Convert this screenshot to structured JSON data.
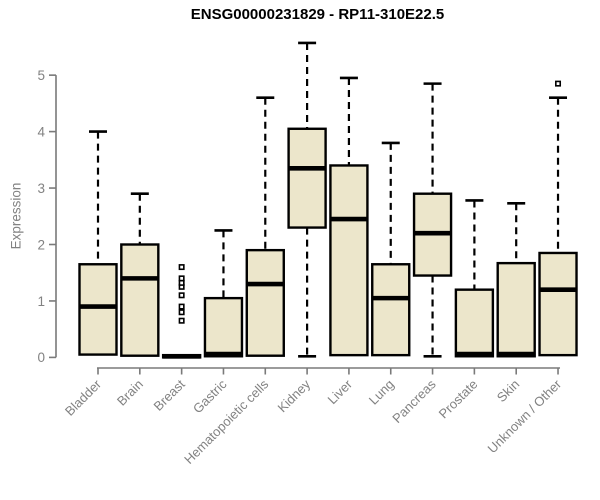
{
  "chart_data": {
    "type": "boxplot",
    "title": "ENSG00000231829 - RP11-310E22.5",
    "ylabel": "Expression",
    "ylim": [
      0,
      5.77
    ],
    "yticks": [
      "0",
      "1",
      "2",
      "3",
      "4",
      "5"
    ],
    "grid": false,
    "legend": false,
    "colors": {
      "box_fill": "#ECE6CB",
      "box_stroke": "#000000",
      "median": "#000000",
      "whisker": "#000000",
      "axis_line": "#7A7A7A",
      "axis_text": "#828282",
      "title_text": "#000000",
      "background": "#FFFFFF"
    },
    "categories": [
      "Bladder",
      "Brain",
      "Breast",
      "Gastric",
      "Hematopoietic cells",
      "Kidney",
      "Liver",
      "Lung",
      "Pancreas",
      "Prostate",
      "Skin",
      "Unknown / Other"
    ],
    "boxes": [
      {
        "category": "Bladder",
        "whisker_low": null,
        "q1": 0.05,
        "median": 0.9,
        "q3": 1.65,
        "whisker_high": 4.0,
        "outliers": []
      },
      {
        "category": "Brain",
        "whisker_low": null,
        "q1": 0.03,
        "median": 1.4,
        "q3": 2.0,
        "whisker_high": 2.9,
        "outliers": []
      },
      {
        "category": "Breast",
        "whisker_low": null,
        "q1": 0.0,
        "median": 0.02,
        "q3": 0.04,
        "whisker_high": null,
        "outliers": [
          0.65,
          0.8,
          0.9,
          1.1,
          1.25,
          1.32,
          1.4,
          1.6
        ]
      },
      {
        "category": "Gastric",
        "whisker_low": null,
        "q1": 0.02,
        "median": 0.06,
        "q3": 1.05,
        "whisker_high": 2.25,
        "outliers": []
      },
      {
        "category": "Hematopoietic cells",
        "whisker_low": null,
        "q1": 0.03,
        "median": 1.3,
        "q3": 1.9,
        "whisker_high": 4.6,
        "outliers": []
      },
      {
        "category": "Kidney",
        "whisker_low": 0.02,
        "q1": 2.3,
        "median": 3.35,
        "q3": 4.05,
        "whisker_high": 5.57,
        "outliers": []
      },
      {
        "category": "Liver",
        "whisker_low": null,
        "q1": 0.04,
        "median": 2.45,
        "q3": 3.4,
        "whisker_high": 4.95,
        "outliers": []
      },
      {
        "category": "Lung",
        "whisker_low": null,
        "q1": 0.04,
        "median": 1.05,
        "q3": 1.65,
        "whisker_high": 3.8,
        "outliers": []
      },
      {
        "category": "Pancreas",
        "whisker_low": 0.02,
        "q1": 1.45,
        "median": 2.2,
        "q3": 2.9,
        "whisker_high": 4.85,
        "outliers": []
      },
      {
        "category": "Prostate",
        "whisker_low": null,
        "q1": 0.02,
        "median": 0.06,
        "q3": 1.2,
        "whisker_high": 2.78,
        "outliers": []
      },
      {
        "category": "Skin",
        "whisker_low": null,
        "q1": 0.02,
        "median": 0.06,
        "q3": 1.67,
        "whisker_high": 2.73,
        "outliers": []
      },
      {
        "category": "Unknown / Other",
        "whisker_low": null,
        "q1": 0.04,
        "median": 1.2,
        "q3": 1.85,
        "whisker_high": 4.6,
        "outliers": [
          4.85
        ]
      }
    ]
  }
}
